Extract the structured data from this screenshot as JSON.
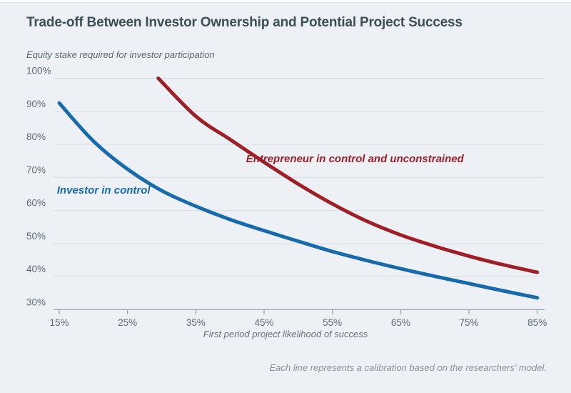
{
  "title": "Trade-off Between Investor Ownership and Potential Project Success",
  "footnote": "Each line represents a calibration based on the researchers' model.",
  "colors": {
    "background": "#edf1f6",
    "gridline": "#d8dde3",
    "axis": "#9aa5ad",
    "tick_text": "#5d6a72",
    "title_text": "#3c4e58",
    "investor_blue": "#176aac",
    "entrepreneur_red": "#9e2026"
  },
  "chart_data": {
    "type": "line",
    "title": "Trade-off Between Investor Ownership and Potential Project Success",
    "xlabel": "First period project likelihood of success",
    "ylabel": "Equity stake required for investor participation",
    "xlim": [
      15,
      85
    ],
    "ylim": [
      30,
      100
    ],
    "grid": "horizontal",
    "legend_position": "inline-annotations",
    "x_ticks": [
      "15%",
      "25%",
      "35%",
      "45%",
      "55%",
      "65%",
      "75%",
      "85%"
    ],
    "x_tick_values": [
      15,
      25,
      35,
      45,
      55,
      65,
      75,
      85
    ],
    "y_ticks": [
      "100%",
      "90%",
      "80%",
      "70%",
      "60%",
      "50%",
      "40%",
      "30%"
    ],
    "y_tick_values": [
      100,
      90,
      80,
      70,
      60,
      50,
      40,
      30
    ],
    "series": [
      {
        "name": "Investor in control",
        "color": "#176aac",
        "label_at": [
          21.5,
          65.1
        ],
        "points": [
          [
            15,
            92.5
          ],
          [
            20,
            81.0
          ],
          [
            25,
            72.5
          ],
          [
            30,
            66.0
          ],
          [
            35,
            61.3
          ],
          [
            40,
            57.3
          ],
          [
            45,
            53.9
          ],
          [
            50,
            50.7
          ],
          [
            55,
            47.6
          ],
          [
            60,
            44.9
          ],
          [
            65,
            42.4
          ],
          [
            70,
            40.1
          ],
          [
            75,
            37.9
          ],
          [
            80,
            35.7
          ],
          [
            85,
            33.6
          ]
        ]
      },
      {
        "name": "Entrepreneur in control and unconstrained",
        "color": "#9e2026",
        "label_at": [
          58.3,
          74.6
        ],
        "points": [
          [
            29.5,
            100.0
          ],
          [
            35,
            88.5
          ],
          [
            40,
            81.5
          ],
          [
            45,
            74.6
          ],
          [
            50,
            68.0
          ],
          [
            55,
            62.0
          ],
          [
            60,
            56.8
          ],
          [
            65,
            52.6
          ],
          [
            70,
            49.2
          ],
          [
            75,
            46.2
          ],
          [
            80,
            43.6
          ],
          [
            85,
            41.3
          ]
        ]
      }
    ]
  }
}
